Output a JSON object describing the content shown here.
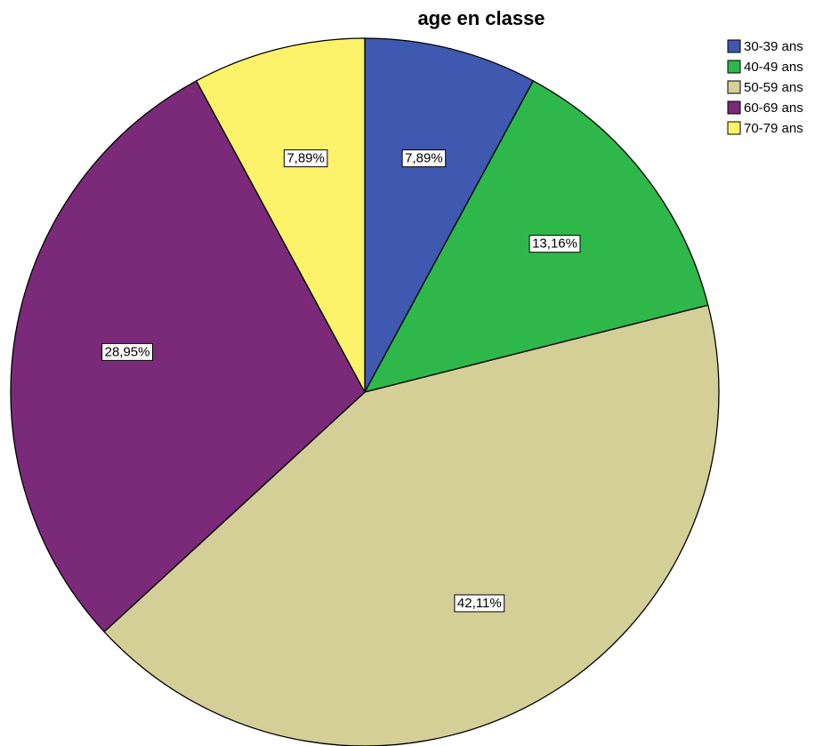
{
  "chart_data": {
    "type": "pie",
    "title": "age en classe",
    "categories": [
      "30-39 ans",
      "40-49 ans",
      "50-59 ans",
      "60-69 ans",
      "70-79 ans"
    ],
    "values": [
      7.89,
      13.16,
      42.11,
      28.95,
      7.89
    ],
    "value_labels": [
      "7,89%",
      "13,16%",
      "42,11%",
      "28,95%",
      "7,89%"
    ],
    "colors": [
      "#3f58b0",
      "#2eb84a",
      "#d4cf97",
      "#7b2a7a",
      "#fdf36b"
    ],
    "legend": "top-right"
  }
}
